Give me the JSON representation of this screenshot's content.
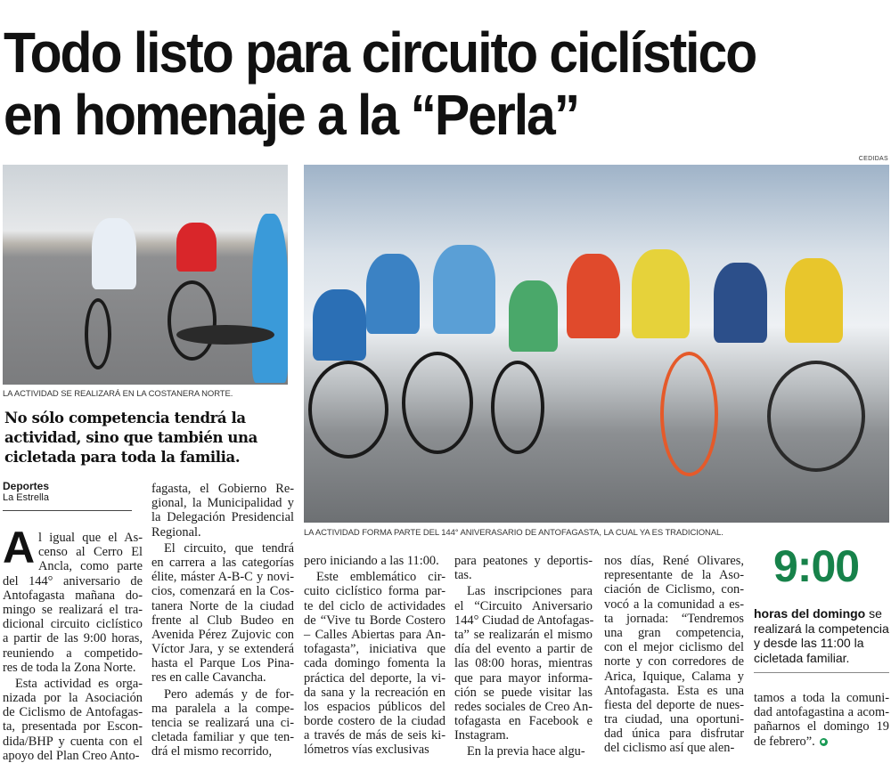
{
  "headline": {
    "line1": "Todo listo para circuito ciclístico",
    "line2": "en homenaje a la “Perla”"
  },
  "photo_credit": "CEDIDAS",
  "photos": {
    "left_caption": "LA ACTIVIDAD SE REALIZARÁ EN LA COSTANERA NORTE.",
    "main_caption": "LA ACTIVIDAD FORMA PARTE DEL 144° ANIVERASARIO DE ANTOFAGASTA, LA CUAL YA ES TRADICIONAL."
  },
  "subheadline": "No sólo competencia tendrá la actividad, sino que también una cicletada para toda la familia.",
  "byline": {
    "section": "Deportes",
    "source": "La Estrella"
  },
  "drop_cap": "A",
  "columns": [
    [
      "l igual que el As-",
      "censo al Cerro El",
      "Ancla, como parte",
      "del 144° aniversario de",
      "Antofagasta mañana do-",
      "mingo se realizará el tra-",
      "dicional circuito ciclístico",
      "a partir de las 9:00 horas,",
      "reuniendo a competido-",
      "res de toda la Zona Norte.",
      "¶Esta actividad es orga-",
      "nizada por la Asociación",
      "de Ciclismo de Antofagas-",
      "ta, presentada por Escon-",
      "dida/BHP y cuenta con el",
      "apoyo del Plan Creo Anto-"
    ],
    [
      "fagasta, el Gobierno Re-",
      "gional, la Municipalidad y",
      "la Delegación Presidencial",
      "Regional.",
      "¶El circuito, que tendrá",
      "en carrera a las categorías",
      "élite, máster A-B-C y novi-",
      "cios, comenzará en la Cos-",
      "tanera Norte de la ciudad",
      "frente al Club Budeo en",
      "Avenida Pérez Zujovic con",
      "Víctor Jara, y se extenderá",
      "hasta el Parque Los Pina-",
      "res en calle Cavancha.",
      "¶Pero además y de for-",
      "ma paralela a la compe-",
      "tencia se realizará una ci-",
      "cletada familiar y que ten-",
      "drá el mismo recorrido,"
    ],
    [
      "pero iniciando a las 11:00.",
      "¶Este emblemático cir-",
      "cuito ciclístico forma par-",
      "te del ciclo de actividades",
      "de “Vive tu Borde Costero",
      "– Calles Abiertas para An-",
      "tofagasta”, iniciativa que",
      "cada domingo fomenta la",
      "práctica del deporte, la vi-",
      "da sana y la recreación en",
      "los espacios públicos del",
      "borde costero de la ciudad",
      "a través de más de seis ki-",
      "lómetros vías exclusivas"
    ],
    [
      "para peatones y deportis-",
      "tas.",
      "¶Las inscripciones para",
      "el “Circuito Aniversario",
      "144° Ciudad de Antofagas-",
      "ta” se realizarán el mismo",
      "día del evento a partir de",
      "las 08:00 horas, mientras",
      "que para mayor informa-",
      "ción se puede visitar las",
      "redes sociales de Creo An-",
      "tofagasta en Facebook e",
      "Instagram.",
      "¶En la previa hace algu-"
    ],
    [
      "nos días, René Olivares,",
      "representante de la Aso-",
      "ciación de Ciclismo, con-",
      "vocó a la comunidad a es-",
      "ta jornada: “Tendremos",
      "una gran competencia,",
      "con el mejor ciclismo del",
      "norte y con corredores de",
      "Arica, Iquique, Calama y",
      "Antofagasta. Esta es una",
      "fiesta del deporte de nues-",
      "tra ciudad, una oportuni-",
      "dad única para disfrutar",
      "del ciclismo así que alen-"
    ],
    [
      "tamos a toda la comuni-",
      "dad antofagastina a acom-",
      "pañarnos el domingo 19",
      "de febrero”."
    ]
  ],
  "sidebar": {
    "big_number": "9:00",
    "bold_lead": "horas del domingo",
    "text": " se realizará la competencia y desde las 11:00 la cicletada familiar.",
    "accent_color": "#17824a"
  }
}
